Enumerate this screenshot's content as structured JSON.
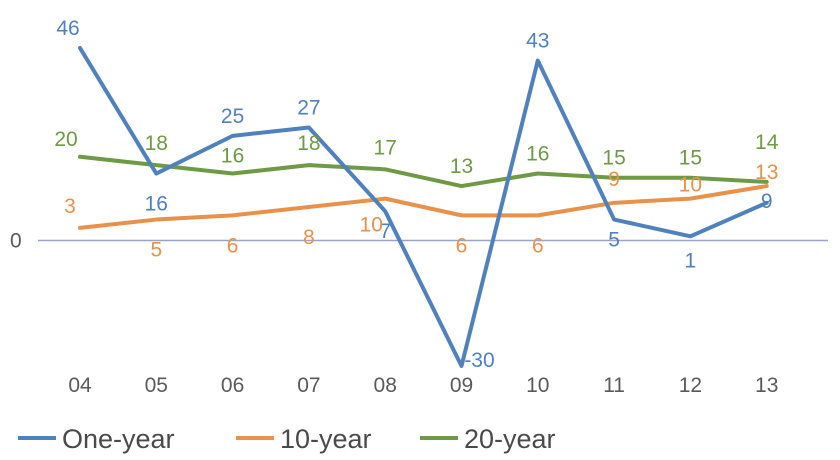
{
  "chart_data": {
    "type": "line",
    "categories": [
      "04",
      "05",
      "06",
      "07",
      "08",
      "09",
      "10",
      "11",
      "12",
      "13"
    ],
    "series": [
      {
        "name": "One-year",
        "color": "#4f81bd",
        "values": [
          46,
          16,
          25,
          27,
          7,
          -30,
          43,
          5,
          1,
          9
        ],
        "labels": [
          "46",
          "16",
          "25",
          "27",
          "7",
          "-30",
          "43",
          "5",
          "1",
          "9"
        ]
      },
      {
        "name": "10-year",
        "color": "#e8914a",
        "values": [
          3,
          5,
          6,
          8,
          10,
          6,
          6,
          9,
          10,
          13
        ],
        "labels": [
          "3",
          "5",
          "6",
          "8",
          "10",
          "6",
          "6",
          "9",
          "10",
          "13"
        ]
      },
      {
        "name": "20-year",
        "color": "#6e9a45",
        "values": [
          20,
          18,
          16,
          18,
          17,
          13,
          16,
          15,
          15,
          14
        ],
        "labels": [
          "20",
          "18",
          "16",
          "18",
          "17",
          "13",
          "16",
          "15",
          "15",
          "14"
        ]
      }
    ],
    "y_zero_label": "0",
    "ylim": [
      -30,
      46
    ],
    "grid": false,
    "legend_position": "bottom-left",
    "title": "",
    "xlabel": "",
    "ylabel": ""
  }
}
